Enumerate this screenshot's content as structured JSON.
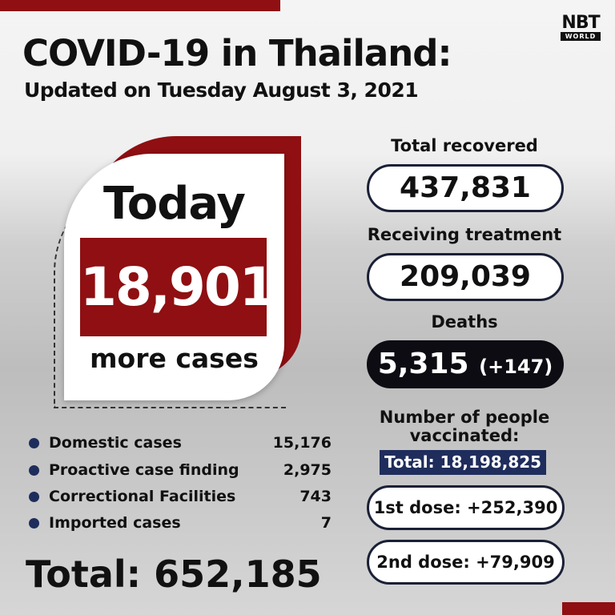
{
  "header": {
    "title": "COVID-19 in Thailand:",
    "subtitle": "Updated on Tuesday August 3, 2021",
    "logo": {
      "name": "NBT",
      "sub": "WORLD"
    }
  },
  "today": {
    "label": "Today",
    "value": "18,901",
    "caption": "more cases"
  },
  "breakdown": [
    {
      "label": "Domestic cases",
      "value": "15,176"
    },
    {
      "label": "Proactive case finding",
      "value": "2,975"
    },
    {
      "label": "Correctional Facilities",
      "value": "743"
    },
    {
      "label": "Imported cases",
      "value": "7"
    }
  ],
  "total": "Total: 652,185",
  "stats": {
    "recovered": {
      "label": "Total recovered",
      "value": "437,831"
    },
    "treatment": {
      "label": "Receiving treatment",
      "value": "209,039"
    },
    "deaths": {
      "label": "Deaths",
      "value": "5,315",
      "change": "(+147)"
    }
  },
  "vaccination": {
    "heading_1": "Number of people",
    "heading_2": "vaccinated:",
    "total": "Total: 18,198,825",
    "first": "1st dose: +252,390",
    "second": "2nd dose: +79,909"
  },
  "colors": {
    "accent_red": "#8f0f12",
    "navy": "#1f2d5c"
  }
}
